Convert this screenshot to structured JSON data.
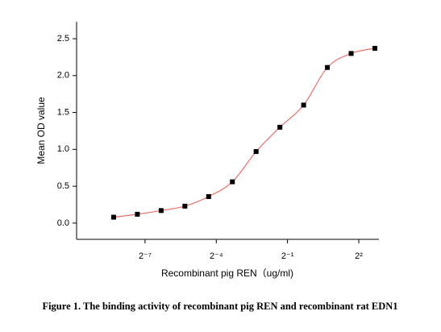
{
  "chart_data": {
    "type": "scatter",
    "x_label": "Recombinant pig REN（ug/ml)",
    "y_label": "Mean OD value",
    "caption": "Figure 1. The binding activity of recombinant pig REN and recombinant rat EDN1",
    "x": [
      0.003125,
      0.00625,
      0.0125,
      0.025,
      0.05,
      0.1,
      0.2,
      0.4,
      0.8,
      1.6,
      3.2,
      6.4
    ],
    "values": [
      0.08,
      0.12,
      0.17,
      0.23,
      0.36,
      0.56,
      0.97,
      1.3,
      1.6,
      2.11,
      2.3,
      2.37
    ],
    "color": "#000000",
    "line_color": "#e8706f",
    "xscale": "log2",
    "xlim": [
      0.00106,
      7.2
    ],
    "xticks": [
      {
        "value": 0.0078125,
        "label": "2⁻⁷"
      },
      {
        "value": 0.0625,
        "label": "2⁻⁴"
      },
      {
        "value": 0.5,
        "label": "2⁻¹"
      },
      {
        "value": 4,
        "label": "2²"
      }
    ],
    "ylim": [
      -0.22,
      2.73
    ],
    "yticks": [
      {
        "value": 0,
        "label": "0.0"
      },
      0.5,
      {
        "value": 1,
        "label": "1.0"
      },
      1.5,
      {
        "value": 2,
        "label": "2.0"
      },
      2.5
    ]
  }
}
